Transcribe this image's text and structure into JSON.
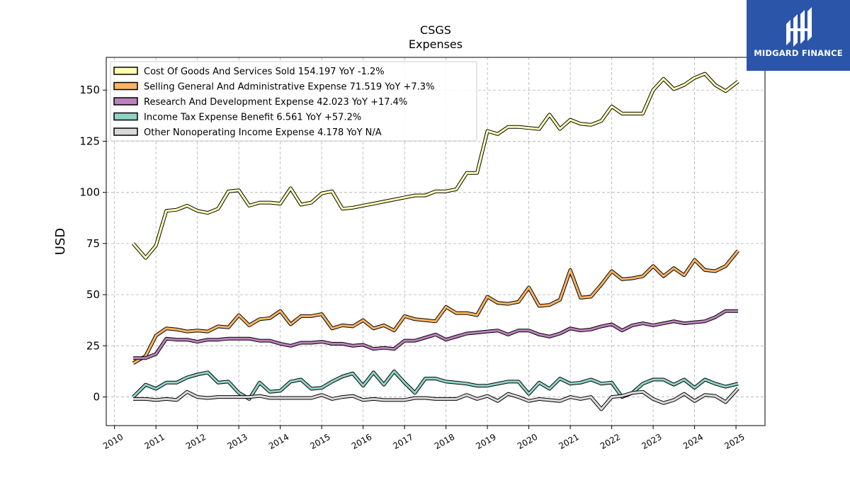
{
  "logo": {
    "text": "MIDGARD FINANCE",
    "color": "#2B55A8"
  },
  "chart_data": {
    "type": "line",
    "title": "CSGS",
    "subtitle": "Expenses",
    "ylabel": "USD",
    "xlim": [
      2009.8,
      2025.7
    ],
    "ylim": [
      -14,
      166
    ],
    "yticks": [
      0,
      25,
      50,
      75,
      100,
      125,
      150
    ],
    "xticks": [
      2010,
      2011,
      2012,
      2013,
      2014,
      2015,
      2016,
      2017,
      2018,
      2019,
      2020,
      2021,
      2022,
      2023,
      2024,
      2025
    ],
    "grid": true,
    "legend_position": "top-left",
    "series": [
      {
        "name": "Cost Of Goods And Services Sold",
        "legend_label": "Cost Of Goods And Services Sold  154.197 YoY -1.2%",
        "color": "#FFFFB3",
        "points": [
          [
            2010.45,
            75
          ],
          [
            2010.75,
            68
          ],
          [
            2011.0,
            74
          ],
          [
            2011.25,
            91
          ],
          [
            2011.5,
            91.5
          ],
          [
            2011.75,
            93.5
          ],
          [
            2012.0,
            91
          ],
          [
            2012.25,
            90
          ],
          [
            2012.5,
            92
          ],
          [
            2012.75,
            100.5
          ],
          [
            2013.0,
            101
          ],
          [
            2013.25,
            93.5
          ],
          [
            2013.5,
            95
          ],
          [
            2013.75,
            95
          ],
          [
            2014.0,
            94.5
          ],
          [
            2014.25,
            102
          ],
          [
            2014.5,
            94
          ],
          [
            2014.75,
            95
          ],
          [
            2015.0,
            99.5
          ],
          [
            2015.25,
            100.5
          ],
          [
            2015.5,
            92
          ],
          [
            2015.75,
            92.5
          ],
          [
            2016.0,
            93.5
          ],
          [
            2016.25,
            94.5
          ],
          [
            2016.5,
            95.5
          ],
          [
            2016.75,
            96.5
          ],
          [
            2017.0,
            97.5
          ],
          [
            2017.25,
            98.5
          ],
          [
            2017.5,
            98.5
          ],
          [
            2017.75,
            100.5
          ],
          [
            2018.0,
            100.5
          ],
          [
            2018.25,
            101.5
          ],
          [
            2018.5,
            109.5
          ],
          [
            2018.75,
            109.5
          ],
          [
            2019.0,
            130
          ],
          [
            2019.25,
            128.5
          ],
          [
            2019.5,
            132
          ],
          [
            2019.75,
            132
          ],
          [
            2020.0,
            131.5
          ],
          [
            2020.25,
            131
          ],
          [
            2020.5,
            138
          ],
          [
            2020.75,
            131
          ],
          [
            2021.0,
            135.5
          ],
          [
            2021.25,
            133.5
          ],
          [
            2021.5,
            133
          ],
          [
            2021.75,
            135
          ],
          [
            2022.0,
            142
          ],
          [
            2022.25,
            138.5
          ],
          [
            2022.5,
            138.5
          ],
          [
            2022.75,
            138.5
          ],
          [
            2023.0,
            150
          ],
          [
            2023.25,
            155.5
          ],
          [
            2023.5,
            150.5
          ],
          [
            2023.75,
            152.5
          ],
          [
            2024.0,
            156
          ],
          [
            2024.25,
            158
          ],
          [
            2024.5,
            152.5
          ],
          [
            2024.75,
            149.5
          ],
          [
            2025.05,
            154.2
          ]
        ]
      },
      {
        "name": "Selling General And Administrative Expense",
        "legend_label": "Selling General And Administrative Expense  71.519 YoY +7.3%",
        "color": "#FDB462",
        "points": [
          [
            2010.45,
            16.5
          ],
          [
            2010.75,
            20
          ],
          [
            2011.0,
            30
          ],
          [
            2011.25,
            33.5
          ],
          [
            2011.5,
            33
          ],
          [
            2011.75,
            32
          ],
          [
            2012.0,
            32.5
          ],
          [
            2012.25,
            32
          ],
          [
            2012.5,
            34.5
          ],
          [
            2012.75,
            34
          ],
          [
            2013.0,
            40
          ],
          [
            2013.25,
            35
          ],
          [
            2013.5,
            38
          ],
          [
            2013.75,
            38.5
          ],
          [
            2014.0,
            42
          ],
          [
            2014.25,
            35.5
          ],
          [
            2014.5,
            39.5
          ],
          [
            2014.75,
            39.5
          ],
          [
            2015.0,
            40.5
          ],
          [
            2015.25,
            33.5
          ],
          [
            2015.5,
            35
          ],
          [
            2015.75,
            34.5
          ],
          [
            2016.0,
            37.5
          ],
          [
            2016.25,
            33.5
          ],
          [
            2016.5,
            35
          ],
          [
            2016.75,
            32.5
          ],
          [
            2017.0,
            39.5
          ],
          [
            2017.25,
            38
          ],
          [
            2017.5,
            37.5
          ],
          [
            2017.75,
            37
          ],
          [
            2018.0,
            44
          ],
          [
            2018.25,
            41
          ],
          [
            2018.5,
            41
          ],
          [
            2018.75,
            40
          ],
          [
            2019.0,
            49
          ],
          [
            2019.25,
            46
          ],
          [
            2019.5,
            45.5
          ],
          [
            2019.75,
            46.5
          ],
          [
            2020.0,
            53.5
          ],
          [
            2020.25,
            44.5
          ],
          [
            2020.5,
            45
          ],
          [
            2020.75,
            47.5
          ],
          [
            2021.0,
            62
          ],
          [
            2021.25,
            48.5
          ],
          [
            2021.5,
            49
          ],
          [
            2021.75,
            55
          ],
          [
            2022.0,
            61.5
          ],
          [
            2022.25,
            57.5
          ],
          [
            2022.5,
            58
          ],
          [
            2022.75,
            59
          ],
          [
            2023.0,
            64
          ],
          [
            2023.25,
            59
          ],
          [
            2023.5,
            63
          ],
          [
            2023.75,
            59.5
          ],
          [
            2024.0,
            67
          ],
          [
            2024.25,
            62
          ],
          [
            2024.5,
            61.5
          ],
          [
            2024.75,
            64
          ],
          [
            2025.05,
            71.5
          ]
        ]
      },
      {
        "name": "Research And Development Expense",
        "legend_label": "Research And Development Expense  42.023 YoY +17.4%",
        "color": "#BC80BD",
        "points": [
          [
            2010.45,
            19
          ],
          [
            2010.75,
            19
          ],
          [
            2011.0,
            21
          ],
          [
            2011.25,
            28.5
          ],
          [
            2011.5,
            28
          ],
          [
            2011.75,
            28
          ],
          [
            2012.0,
            27
          ],
          [
            2012.25,
            28
          ],
          [
            2012.5,
            28
          ],
          [
            2012.75,
            28.5
          ],
          [
            2013.0,
            28.5
          ],
          [
            2013.25,
            28.5
          ],
          [
            2013.5,
            27.5
          ],
          [
            2013.75,
            27.5
          ],
          [
            2014.0,
            26
          ],
          [
            2014.25,
            25
          ],
          [
            2014.5,
            26.5
          ],
          [
            2014.75,
            26.5
          ],
          [
            2015.0,
            27
          ],
          [
            2015.25,
            26
          ],
          [
            2015.5,
            26
          ],
          [
            2015.75,
            25
          ],
          [
            2016.0,
            25.5
          ],
          [
            2016.25,
            23.5
          ],
          [
            2016.5,
            24
          ],
          [
            2016.75,
            23.5
          ],
          [
            2017.0,
            27.5
          ],
          [
            2017.25,
            27.5
          ],
          [
            2017.5,
            29
          ],
          [
            2017.75,
            30.5
          ],
          [
            2018.0,
            28
          ],
          [
            2018.25,
            29.5
          ],
          [
            2018.5,
            31
          ],
          [
            2018.75,
            31.5
          ],
          [
            2019.0,
            32
          ],
          [
            2019.25,
            32.5
          ],
          [
            2019.5,
            30.5
          ],
          [
            2019.75,
            32.5
          ],
          [
            2020.0,
            32.5
          ],
          [
            2020.25,
            30.5
          ],
          [
            2020.5,
            29.5
          ],
          [
            2020.75,
            31
          ],
          [
            2021.0,
            33.5
          ],
          [
            2021.25,
            32.5
          ],
          [
            2021.5,
            33
          ],
          [
            2021.75,
            34.5
          ],
          [
            2022.0,
            35.5
          ],
          [
            2022.25,
            32.5
          ],
          [
            2022.5,
            35
          ],
          [
            2022.75,
            36
          ],
          [
            2023.0,
            35
          ],
          [
            2023.25,
            36
          ],
          [
            2023.5,
            37
          ],
          [
            2023.75,
            36
          ],
          [
            2024.0,
            36.5
          ],
          [
            2024.25,
            37
          ],
          [
            2024.5,
            39
          ],
          [
            2024.75,
            42
          ],
          [
            2025.05,
            42
          ]
        ]
      },
      {
        "name": "Income Tax Expense Benefit",
        "legend_label": "Income Tax Expense Benefit  6.561 YoY +57.2%",
        "color": "#8DD3C7",
        "points": [
          [
            2010.45,
            0
          ],
          [
            2010.75,
            6
          ],
          [
            2011.0,
            4
          ],
          [
            2011.25,
            7
          ],
          [
            2011.5,
            7
          ],
          [
            2011.75,
            9.5
          ],
          [
            2012.0,
            11
          ],
          [
            2012.25,
            12
          ],
          [
            2012.5,
            7
          ],
          [
            2012.75,
            7.5
          ],
          [
            2013.0,
            2
          ],
          [
            2013.25,
            -1
          ],
          [
            2013.5,
            7
          ],
          [
            2013.75,
            2.5
          ],
          [
            2014.0,
            3
          ],
          [
            2014.25,
            7.5
          ],
          [
            2014.5,
            8.5
          ],
          [
            2014.75,
            4
          ],
          [
            2015.0,
            4.5
          ],
          [
            2015.25,
            7.5
          ],
          [
            2015.5,
            10
          ],
          [
            2015.75,
            11.5
          ],
          [
            2016.0,
            5.5
          ],
          [
            2016.25,
            12
          ],
          [
            2016.5,
            6
          ],
          [
            2016.75,
            12.5
          ],
          [
            2017.0,
            7
          ],
          [
            2017.25,
            2
          ],
          [
            2017.5,
            9
          ],
          [
            2017.75,
            9
          ],
          [
            2018.0,
            7.5
          ],
          [
            2018.25,
            7
          ],
          [
            2018.5,
            6.5
          ],
          [
            2018.75,
            5.5
          ],
          [
            2019.0,
            5.5
          ],
          [
            2019.25,
            6.5
          ],
          [
            2019.5,
            7.5
          ],
          [
            2019.75,
            7.5
          ],
          [
            2020.0,
            1.5
          ],
          [
            2020.25,
            7
          ],
          [
            2020.5,
            4
          ],
          [
            2020.75,
            9
          ],
          [
            2021.0,
            6.5
          ],
          [
            2021.25,
            7
          ],
          [
            2021.5,
            8.5
          ],
          [
            2021.75,
            6.5
          ],
          [
            2022.0,
            7
          ],
          [
            2022.25,
            0
          ],
          [
            2022.5,
            2
          ],
          [
            2022.75,
            6.5
          ],
          [
            2023.0,
            8.5
          ],
          [
            2023.25,
            8.5
          ],
          [
            2023.5,
            6
          ],
          [
            2023.75,
            8.5
          ],
          [
            2024.0,
            4.5
          ],
          [
            2024.25,
            8.5
          ],
          [
            2024.5,
            6.5
          ],
          [
            2024.75,
            5
          ],
          [
            2025.05,
            6.5
          ]
        ]
      },
      {
        "name": "Other Nonoperating Income Expense",
        "legend_label": "Other Nonoperating Income Expense  4.178 YoY N/A",
        "color": "#D9D9D9",
        "points": [
          [
            2010.45,
            -1
          ],
          [
            2010.75,
            -1
          ],
          [
            2011.0,
            -1.5
          ],
          [
            2011.25,
            -1
          ],
          [
            2011.5,
            -1.5
          ],
          [
            2011.75,
            2.5
          ],
          [
            2012.0,
            0
          ],
          [
            2012.25,
            -0.5
          ],
          [
            2012.5,
            0
          ],
          [
            2012.75,
            0
          ],
          [
            2013.0,
            0
          ],
          [
            2013.25,
            0
          ],
          [
            2013.5,
            0.5
          ],
          [
            2013.75,
            -0.5
          ],
          [
            2014.0,
            -0.5
          ],
          [
            2014.25,
            -0.5
          ],
          [
            2014.5,
            -0.5
          ],
          [
            2014.75,
            -0.5
          ],
          [
            2015.0,
            1
          ],
          [
            2015.25,
            -1
          ],
          [
            2015.5,
            0
          ],
          [
            2015.75,
            0.5
          ],
          [
            2016.0,
            -1.5
          ],
          [
            2016.25,
            -1
          ],
          [
            2016.5,
            -1.5
          ],
          [
            2016.75,
            -1.5
          ],
          [
            2017.0,
            -1.5
          ],
          [
            2017.25,
            -0.5
          ],
          [
            2017.5,
            -0.5
          ],
          [
            2017.75,
            -1
          ],
          [
            2018.0,
            -1
          ],
          [
            2018.25,
            -1
          ],
          [
            2018.5,
            1
          ],
          [
            2018.75,
            -1
          ],
          [
            2019.0,
            0.5
          ],
          [
            2019.25,
            -2
          ],
          [
            2019.5,
            1.5
          ],
          [
            2019.75,
            0
          ],
          [
            2020.0,
            -2
          ],
          [
            2020.25,
            -1
          ],
          [
            2020.5,
            -1.5
          ],
          [
            2020.75,
            -2
          ],
          [
            2021.0,
            0
          ],
          [
            2021.25,
            -1
          ],
          [
            2021.5,
            0
          ],
          [
            2021.75,
            -6
          ],
          [
            2022.0,
            0
          ],
          [
            2022.25,
            0.5
          ],
          [
            2022.5,
            2
          ],
          [
            2022.75,
            2.5
          ],
          [
            2023.0,
            -1
          ],
          [
            2023.25,
            -3
          ],
          [
            2023.5,
            -1.5
          ],
          [
            2023.75,
            1.5
          ],
          [
            2024.0,
            -2
          ],
          [
            2024.25,
            1
          ],
          [
            2024.5,
            0.5
          ],
          [
            2024.75,
            -2.5
          ],
          [
            2025.05,
            4.2
          ]
        ]
      }
    ]
  }
}
